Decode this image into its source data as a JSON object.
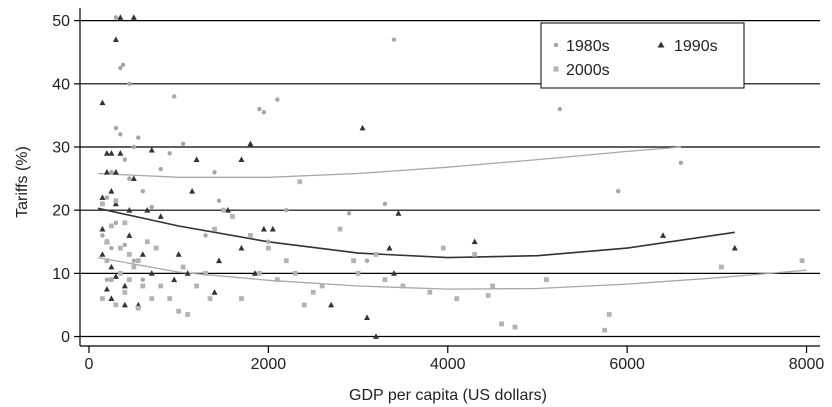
{
  "chart_data": {
    "type": "scatter",
    "xlabel": "GDP per capita (US dollars)",
    "ylabel": "Tariffs (%)",
    "xlim": [
      -100,
      8150
    ],
    "ylim": [
      -1.5,
      52
    ],
    "x_ticks": [
      0,
      2000,
      4000,
      6000,
      8000
    ],
    "y_ticks": [
      0,
      10,
      20,
      30,
      40,
      50
    ],
    "grid": "horizontal",
    "legend_position": "top-right",
    "colors": {
      "1980s": "#a6a6a6",
      "1990s": "#333333",
      "2000s": "#b3b3b3",
      "grid": "#000000"
    },
    "series": [
      {
        "name": "1980s",
        "marker": "circle",
        "points": [
          [
            300,
            50.5
          ],
          [
            350,
            42.5
          ],
          [
            380,
            43
          ],
          [
            450,
            40
          ],
          [
            300,
            33
          ],
          [
            350,
            32
          ],
          [
            550,
            31.5
          ],
          [
            500,
            30
          ],
          [
            400,
            28
          ],
          [
            250,
            26
          ],
          [
            450,
            25
          ],
          [
            600,
            23
          ],
          [
            800,
            26.5
          ],
          [
            900,
            29
          ],
          [
            950,
            38
          ],
          [
            1050,
            30.5
          ],
          [
            1400,
            26
          ],
          [
            1450,
            21.5
          ],
          [
            1900,
            36
          ],
          [
            1950,
            35.5
          ],
          [
            2100,
            37.5
          ],
          [
            2200,
            20
          ],
          [
            3400,
            47
          ],
          [
            2900,
            19.5
          ],
          [
            3300,
            21
          ],
          [
            3100,
            12
          ],
          [
            5250,
            36
          ],
          [
            5900,
            23
          ],
          [
            6600,
            27.5
          ],
          [
            200,
            22
          ],
          [
            300,
            18
          ],
          [
            150,
            16
          ],
          [
            250,
            14
          ],
          [
            400,
            14.5
          ],
          [
            500,
            12
          ],
          [
            600,
            9
          ],
          [
            200,
            9
          ],
          [
            350,
            10
          ],
          [
            700,
            20.5
          ],
          [
            1800,
            16
          ],
          [
            1300,
            16
          ],
          [
            2000,
            15
          ]
        ]
      },
      {
        "name": "1990s",
        "marker": "triangle",
        "points": [
          [
            350,
            50.5
          ],
          [
            500,
            50.5
          ],
          [
            300,
            47
          ],
          [
            150,
            37
          ],
          [
            200,
            29
          ],
          [
            250,
            29
          ],
          [
            350,
            29
          ],
          [
            200,
            26
          ],
          [
            300,
            26
          ],
          [
            500,
            25
          ],
          [
            250,
            23
          ],
          [
            150,
            22
          ],
          [
            300,
            21
          ],
          [
            450,
            20
          ],
          [
            650,
            20
          ],
          [
            800,
            19
          ],
          [
            700,
            29.5
          ],
          [
            1200,
            28
          ],
          [
            1700,
            28
          ],
          [
            1800,
            30.5
          ],
          [
            1150,
            23
          ],
          [
            1550,
            20
          ],
          [
            1950,
            17
          ],
          [
            2050,
            17
          ],
          [
            1700,
            14
          ],
          [
            1450,
            12
          ],
          [
            1850,
            10
          ],
          [
            1400,
            7
          ],
          [
            3050,
            33
          ],
          [
            3450,
            19.5
          ],
          [
            3350,
            14
          ],
          [
            3400,
            10
          ],
          [
            4300,
            15
          ],
          [
            6400,
            16
          ],
          [
            7200,
            14
          ],
          [
            3100,
            3
          ],
          [
            3200,
            0
          ],
          [
            2700,
            5
          ],
          [
            150,
            17
          ],
          [
            200,
            15
          ],
          [
            150,
            13
          ],
          [
            250,
            11
          ],
          [
            300,
            9.5
          ],
          [
            400,
            8
          ],
          [
            200,
            7.5
          ],
          [
            250,
            6
          ],
          [
            400,
            5
          ],
          [
            550,
            5
          ],
          [
            700,
            10
          ],
          [
            600,
            13
          ],
          [
            450,
            16
          ],
          [
            1000,
            13
          ],
          [
            1100,
            10
          ],
          [
            950,
            9
          ]
        ]
      },
      {
        "name": "2000s",
        "marker": "square",
        "points": [
          [
            150,
            21
          ],
          [
            300,
            21.5
          ],
          [
            400,
            18
          ],
          [
            250,
            17.5
          ],
          [
            200,
            15
          ],
          [
            350,
            14
          ],
          [
            450,
            13
          ],
          [
            550,
            12
          ],
          [
            650,
            15
          ],
          [
            750,
            14
          ],
          [
            500,
            11
          ],
          [
            350,
            10
          ],
          [
            250,
            9
          ],
          [
            450,
            9
          ],
          [
            600,
            8
          ],
          [
            800,
            8
          ],
          [
            900,
            6
          ],
          [
            1000,
            4
          ],
          [
            1100,
            3.5
          ],
          [
            1350,
            6
          ],
          [
            1500,
            20
          ],
          [
            1600,
            19
          ],
          [
            1400,
            17
          ],
          [
            1800,
            16
          ],
          [
            2000,
            14
          ],
          [
            2200,
            12
          ],
          [
            2300,
            10
          ],
          [
            2350,
            24.5
          ],
          [
            2500,
            7
          ],
          [
            2400,
            5
          ],
          [
            2800,
            17
          ],
          [
            2950,
            12
          ],
          [
            3000,
            10
          ],
          [
            3300,
            9
          ],
          [
            3500,
            8
          ],
          [
            3950,
            14
          ],
          [
            4300,
            13
          ],
          [
            4450,
            6.5
          ],
          [
            4600,
            2
          ],
          [
            4750,
            1.5
          ],
          [
            4500,
            8
          ],
          [
            5100,
            9
          ],
          [
            5750,
            1
          ],
          [
            5800,
            3.5
          ],
          [
            7050,
            11
          ],
          [
            7950,
            12
          ],
          [
            200,
            12
          ],
          [
            300,
            5
          ],
          [
            550,
            4.5
          ],
          [
            700,
            6
          ],
          [
            1200,
            8
          ],
          [
            1700,
            6
          ],
          [
            1900,
            10
          ],
          [
            2600,
            8
          ],
          [
            3800,
            7
          ],
          [
            150,
            6
          ],
          [
            400,
            7
          ],
          [
            1050,
            11
          ],
          [
            1300,
            10
          ],
          [
            2100,
            9
          ],
          [
            3200,
            13
          ],
          [
            4100,
            6
          ]
        ]
      }
    ],
    "trend_lines": [
      {
        "name": "1980s",
        "points": [
          [
            100,
            25.8
          ],
          [
            1000,
            25.2
          ],
          [
            2000,
            25.2
          ],
          [
            3000,
            25.8
          ],
          [
            4000,
            26.8
          ],
          [
            5000,
            28
          ],
          [
            6000,
            29.3
          ],
          [
            6600,
            30
          ]
        ]
      },
      {
        "name": "1990s",
        "points": [
          [
            100,
            20.3
          ],
          [
            1000,
            17.5
          ],
          [
            2000,
            15
          ],
          [
            3000,
            13.2
          ],
          [
            4000,
            12.5
          ],
          [
            5000,
            12.8
          ],
          [
            6000,
            14
          ],
          [
            7200,
            16.5
          ]
        ]
      },
      {
        "name": "2000s",
        "points": [
          [
            100,
            12.5
          ],
          [
            1000,
            10.2
          ],
          [
            2000,
            8.9
          ],
          [
            3000,
            8
          ],
          [
            4000,
            7.5
          ],
          [
            5000,
            7.6
          ],
          [
            6000,
            8.3
          ],
          [
            7000,
            9.3
          ],
          [
            8000,
            10.5
          ]
        ]
      }
    ],
    "legend_entries": [
      "1980s",
      "1990s",
      "2000s"
    ]
  }
}
